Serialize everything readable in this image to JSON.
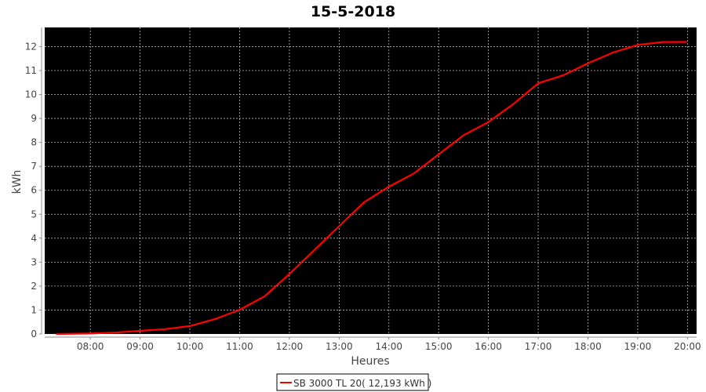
{
  "chart_data": {
    "type": "line",
    "title": "15-5-2018",
    "xlabel": "Heures",
    "ylabel": "kWh",
    "xlim": [
      "07:05",
      "20:11"
    ],
    "ylim": [
      0,
      12.8
    ],
    "x_ticks": [
      "08:00",
      "09:00",
      "10:00",
      "11:00",
      "12:00",
      "13:00",
      "14:00",
      "15:00",
      "16:00",
      "17:00",
      "18:00",
      "19:00",
      "20:00"
    ],
    "y_ticks": [
      0,
      1,
      2,
      3,
      4,
      5,
      6,
      7,
      8,
      9,
      10,
      11,
      12
    ],
    "grid": true,
    "background": "#000000",
    "legend_position": "bottom",
    "series": [
      {
        "name": "SB 3000 TL 20( 12,193 kWh )",
        "color": "#ff0000",
        "x": [
          "07:19",
          "08:00",
          "08:30",
          "09:00",
          "09:30",
          "10:00",
          "10:30",
          "11:00",
          "11:30",
          "12:00",
          "12:30",
          "13:00",
          "13:30",
          "14:00",
          "14:30",
          "15:00",
          "15:30",
          "16:00",
          "16:30",
          "17:00",
          "17:30",
          "18:00",
          "18:30",
          "19:00",
          "19:30",
          "19:59"
        ],
        "y": [
          0,
          0.02,
          0.06,
          0.13,
          0.2,
          0.33,
          0.62,
          1.01,
          1.57,
          2.5,
          3.5,
          4.5,
          5.5,
          6.15,
          6.7,
          7.5,
          8.3,
          8.85,
          9.6,
          10.47,
          10.8,
          11.3,
          11.75,
          12.07,
          12.19,
          12.193
        ]
      }
    ]
  }
}
